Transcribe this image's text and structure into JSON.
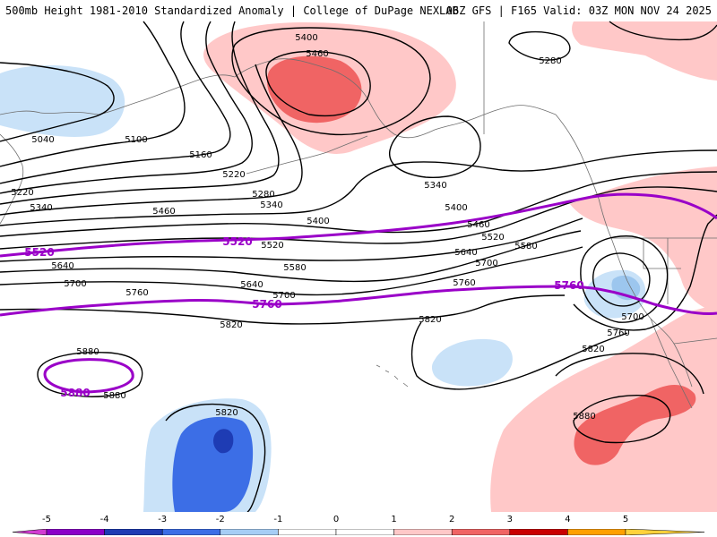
{
  "header": {
    "left_title": "500mb Height 1981-2010 Standardized Anomaly | College of DuPage NEXLAB",
    "right_title": "06Z GFS | F165 Valid: 03Z MON NOV 24 2025"
  },
  "colors": {
    "contour": "#000000",
    "highlight_contour": "#9a00c8",
    "coast": "#6e6e6e"
  },
  "contour_labels": [
    {
      "id": "c5400a",
      "text": "5400"
    },
    {
      "id": "c5460a",
      "text": "5460"
    },
    {
      "id": "c5280a",
      "text": "5280"
    },
    {
      "id": "c5040",
      "text": "5040"
    },
    {
      "id": "c5100",
      "text": "5100"
    },
    {
      "id": "c5160",
      "text": "5160"
    },
    {
      "id": "c5220a",
      "text": "5220"
    },
    {
      "id": "c5220b",
      "text": "5220"
    },
    {
      "id": "c5280b",
      "text": "5280"
    },
    {
      "id": "c5340a",
      "text": "5340"
    },
    {
      "id": "c5340b",
      "text": "5340"
    },
    {
      "id": "c5340c",
      "text": "5340"
    },
    {
      "id": "c5400b",
      "text": "5400"
    },
    {
      "id": "c5400c",
      "text": "5400"
    },
    {
      "id": "c5460b",
      "text": "5460"
    },
    {
      "id": "c5460c",
      "text": "5460"
    },
    {
      "id": "c5520a",
      "text": "5520"
    },
    {
      "id": "c5520b",
      "text": "5520"
    },
    {
      "id": "c5580a",
      "text": "5580"
    },
    {
      "id": "c5580b",
      "text": "5580"
    },
    {
      "id": "c5640a",
      "text": "5640"
    },
    {
      "id": "c5640b",
      "text": "5640"
    },
    {
      "id": "c5640c",
      "text": "5640"
    },
    {
      "id": "c5700a",
      "text": "5700"
    },
    {
      "id": "c5700b",
      "text": "5700"
    },
    {
      "id": "c5700c",
      "text": "5700"
    },
    {
      "id": "c5700d",
      "text": "5700"
    },
    {
      "id": "c5760a",
      "text": "5760"
    },
    {
      "id": "c5760b",
      "text": "5760"
    },
    {
      "id": "c5760c",
      "text": "5760"
    },
    {
      "id": "c5820a",
      "text": "5820"
    },
    {
      "id": "c5820b",
      "text": "5820"
    },
    {
      "id": "c5820c",
      "text": "5820"
    },
    {
      "id": "c5820d",
      "text": "5820"
    },
    {
      "id": "c5880a",
      "text": "5880"
    },
    {
      "id": "c5880b",
      "text": "5880"
    },
    {
      "id": "c5880c",
      "text": "5880"
    }
  ],
  "highlight_labels": [
    {
      "id": "p5520a",
      "text": "5520"
    },
    {
      "id": "p5520b",
      "text": "5520"
    },
    {
      "id": "p5760a",
      "text": "5760"
    },
    {
      "id": "p5760b",
      "text": "5760"
    },
    {
      "id": "p5880",
      "text": "5880"
    }
  ],
  "colorbar": {
    "ticks": [
      "-5",
      "-4",
      "-3",
      "-2",
      "-1",
      "0",
      "1",
      "2",
      "3",
      "4",
      "5"
    ],
    "colors": [
      "#d23cd2",
      "#8c00c8",
      "#1e3cb4",
      "#3c6ee6",
      "#a6cdf5",
      "#ffffff",
      "#ffffff",
      "#ffc8c8",
      "#f06464",
      "#c80000",
      "#ffa000",
      "#ffd23c"
    ]
  }
}
